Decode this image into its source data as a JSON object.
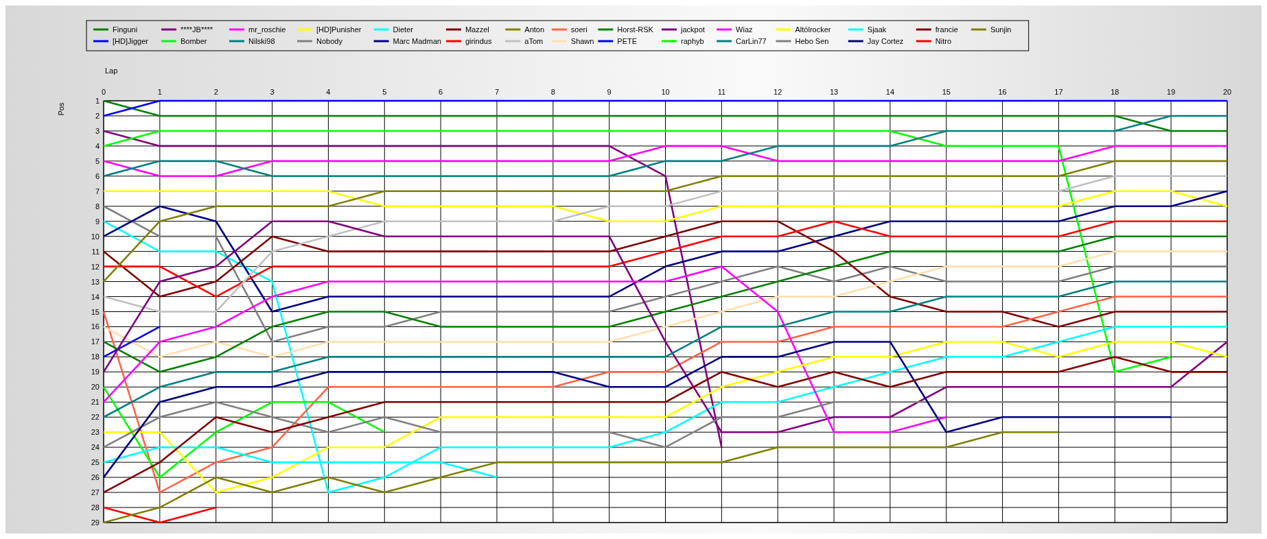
{
  "chart_data": {
    "type": "line",
    "xlabel": "Lap",
    "ylabel": "Pos",
    "x": [
      0,
      1,
      2,
      3,
      4,
      5,
      6,
      7,
      8,
      9,
      10,
      11,
      12,
      13,
      14,
      15,
      16,
      17,
      18,
      19,
      20
    ],
    "xlim": [
      0,
      20
    ],
    "xticks": [
      0,
      1,
      2,
      3,
      4,
      5,
      6,
      7,
      8,
      9,
      10,
      11,
      12,
      13,
      14,
      15,
      16,
      17,
      18,
      19,
      20
    ],
    "ylim": [
      29,
      1
    ],
    "yticks": [
      1,
      2,
      3,
      4,
      5,
      6,
      7,
      8,
      9,
      10,
      11,
      12,
      13,
      14,
      15,
      16,
      17,
      18,
      19,
      20,
      21,
      22,
      23,
      24,
      25,
      26,
      27,
      28,
      29
    ],
    "grid": true,
    "legend": "top",
    "marker": "none",
    "line_style": "solid",
    "series": [
      {
        "name": "Finguni",
        "color": "#008000",
        "values": [
          1,
          2,
          2,
          2,
          2,
          2,
          2,
          2,
          2,
          2,
          2,
          2,
          2,
          2,
          2,
          2,
          2,
          2,
          2,
          3,
          3
        ]
      },
      {
        "name": "[HD]Jigger",
        "color": "#0000ff",
        "values": [
          2,
          1,
          1,
          1,
          1,
          1,
          1,
          1,
          1,
          1,
          1,
          1,
          1,
          1,
          1,
          1,
          1,
          1,
          1,
          1,
          1
        ]
      },
      {
        "name": "****JB****",
        "color": "#800080",
        "values": [
          3,
          4,
          4,
          4,
          4,
          4,
          4,
          4,
          4,
          4,
          6,
          24,
          null,
          null,
          null,
          null,
          null,
          null,
          null,
          null,
          null
        ]
      },
      {
        "name": "Bomber",
        "color": "#00ff00",
        "values": [
          4,
          3,
          3,
          3,
          3,
          3,
          3,
          3,
          3,
          3,
          3,
          3,
          3,
          3,
          3,
          4,
          4,
          4,
          19,
          18,
          null
        ]
      },
      {
        "name": "mr_roschie",
        "color": "#ff00ff",
        "values": [
          5,
          6,
          6,
          5,
          5,
          5,
          5,
          5,
          5,
          5,
          4,
          4,
          5,
          5,
          5,
          5,
          5,
          5,
          4,
          4,
          4
        ]
      },
      {
        "name": "Nilski98",
        "color": "#008080",
        "values": [
          6,
          5,
          5,
          6,
          6,
          6,
          6,
          6,
          6,
          6,
          5,
          5,
          4,
          4,
          4,
          3,
          3,
          3,
          3,
          2,
          2
        ]
      },
      {
        "name": "[HD]Punisher",
        "color": "#ffff00",
        "values": [
          7,
          7,
          7,
          7,
          7,
          8,
          8,
          8,
          8,
          9,
          9,
          8,
          8,
          8,
          8,
          8,
          8,
          8,
          7,
          7,
          8
        ]
      },
      {
        "name": "Nobody",
        "color": "#808080",
        "values": [
          8,
          10,
          10,
          17,
          16,
          16,
          15,
          15,
          15,
          15,
          14,
          13,
          12,
          13,
          12,
          13,
          13,
          13,
          12,
          12,
          12
        ]
      },
      {
        "name": "Dieter",
        "color": "#00ffff",
        "values": [
          9,
          11,
          11,
          13,
          27,
          26,
          24,
          24,
          24,
          24,
          23,
          21,
          21,
          20,
          19,
          18,
          18,
          17,
          16,
          16,
          16
        ]
      },
      {
        "name": "Marc Madman",
        "color": "#000080",
        "values": [
          10,
          8,
          9,
          15,
          14,
          14,
          14,
          14,
          14,
          14,
          12,
          11,
          11,
          10,
          9,
          9,
          9,
          9,
          8,
          8,
          7
        ]
      },
      {
        "name": "Mazzel",
        "color": "#800000",
        "values": [
          11,
          14,
          13,
          10,
          11,
          11,
          11,
          11,
          11,
          11,
          10,
          9,
          9,
          11,
          14,
          15,
          15,
          16,
          15,
          15,
          15
        ]
      },
      {
        "name": "girindus",
        "color": "#ff0000",
        "values": [
          12,
          12,
          14,
          12,
          12,
          12,
          12,
          12,
          12,
          12,
          11,
          10,
          10,
          9,
          10,
          10,
          10,
          10,
          9,
          9,
          9
        ]
      },
      {
        "name": "Anton",
        "color": "#808000",
        "values": [
          13,
          9,
          8,
          8,
          8,
          7,
          7,
          7,
          7,
          7,
          7,
          6,
          6,
          6,
          6,
          6,
          6,
          6,
          5,
          5,
          5
        ]
      },
      {
        "name": "aTom",
        "color": "#c0c0c0",
        "values": [
          14,
          15,
          15,
          11,
          10,
          9,
          9,
          9,
          9,
          8,
          8,
          7,
          7,
          7,
          7,
          7,
          7,
          7,
          6,
          6,
          6
        ]
      },
      {
        "name": "soeri",
        "color": "#ff6347",
        "values": [
          15,
          27,
          25,
          24,
          20,
          20,
          20,
          20,
          20,
          19,
          19,
          17,
          17,
          16,
          16,
          16,
          16,
          15,
          14,
          14,
          14
        ]
      },
      {
        "name": "Shawn",
        "color": "#ffdead",
        "values": [
          16,
          18,
          17,
          18,
          17,
          17,
          17,
          17,
          17,
          17,
          16,
          15,
          14,
          14,
          13,
          12,
          12,
          12,
          11,
          11,
          11
        ]
      },
      {
        "name": "Horst-RSK",
        "color": "#008000",
        "values": [
          17,
          19,
          18,
          16,
          15,
          15,
          16,
          16,
          16,
          16,
          15,
          14,
          13,
          12,
          11,
          11,
          11,
          11,
          10,
          10,
          10
        ]
      },
      {
        "name": "PETE",
        "color": "#0000ff",
        "values": [
          18,
          16,
          null,
          null,
          null,
          null,
          null,
          null,
          null,
          null,
          null,
          null,
          null,
          null,
          null,
          null,
          null,
          null,
          null,
          null,
          null
        ]
      },
      {
        "name": "jackpot",
        "color": "#800080",
        "values": [
          19,
          13,
          12,
          9,
          9,
          10,
          10,
          10,
          10,
          10,
          17,
          23,
          23,
          22,
          22,
          20,
          20,
          20,
          20,
          20,
          17
        ]
      },
      {
        "name": "raphyb",
        "color": "#00ff00",
        "values": [
          20,
          26,
          23,
          21,
          21,
          23,
          null,
          null,
          null,
          null,
          null,
          null,
          null,
          null,
          null,
          null,
          null,
          null,
          null,
          null,
          null
        ]
      },
      {
        "name": "Wiaz",
        "color": "#ff00ff",
        "values": [
          21,
          17,
          16,
          14,
          13,
          13,
          13,
          13,
          13,
          13,
          13,
          12,
          15,
          23,
          23,
          22,
          null,
          null,
          null,
          null,
          null
        ]
      },
      {
        "name": "CarLin77",
        "color": "#008080",
        "values": [
          22,
          20,
          19,
          19,
          18,
          18,
          18,
          18,
          18,
          18,
          18,
          16,
          16,
          15,
          15,
          14,
          14,
          14,
          13,
          13,
          13
        ]
      },
      {
        "name": "Altölrocker",
        "color": "#ffff00",
        "values": [
          23,
          23,
          27,
          26,
          24,
          24,
          22,
          22,
          22,
          22,
          22,
          20,
          19,
          18,
          18,
          17,
          17,
          18,
          17,
          17,
          18
        ]
      },
      {
        "name": "Hebo Sen",
        "color": "#808080",
        "values": [
          24,
          22,
          21,
          22,
          23,
          22,
          23,
          23,
          23,
          23,
          24,
          22,
          22,
          21,
          21,
          21,
          21,
          21,
          21,
          21,
          null
        ]
      },
      {
        "name": "Sjaak",
        "color": "#00ffff",
        "values": [
          25,
          24,
          24,
          25,
          25,
          25,
          25,
          26,
          null,
          null,
          null,
          null,
          null,
          null,
          null,
          null,
          null,
          null,
          null,
          null,
          null
        ]
      },
      {
        "name": "Jay Cortez",
        "color": "#000080",
        "values": [
          26,
          21,
          20,
          20,
          19,
          19,
          19,
          19,
          19,
          20,
          20,
          18,
          18,
          17,
          17,
          23,
          22,
          22,
          22,
          22,
          null
        ]
      },
      {
        "name": "francie",
        "color": "#800000",
        "values": [
          27,
          25,
          22,
          23,
          22,
          21,
          21,
          21,
          21,
          21,
          21,
          19,
          20,
          19,
          20,
          19,
          19,
          19,
          18,
          19,
          19
        ]
      },
      {
        "name": "Nitro",
        "color": "#ff0000",
        "values": [
          28,
          29,
          28,
          null,
          null,
          null,
          null,
          null,
          null,
          null,
          null,
          null,
          null,
          null,
          null,
          null,
          null,
          null,
          null,
          null,
          null
        ]
      },
      {
        "name": "Sunjin",
        "color": "#808000",
        "values": [
          29,
          28,
          26,
          27,
          26,
          27,
          26,
          25,
          25,
          25,
          25,
          25,
          24,
          24,
          24,
          24,
          23,
          23,
          null,
          null,
          null
        ]
      }
    ]
  }
}
